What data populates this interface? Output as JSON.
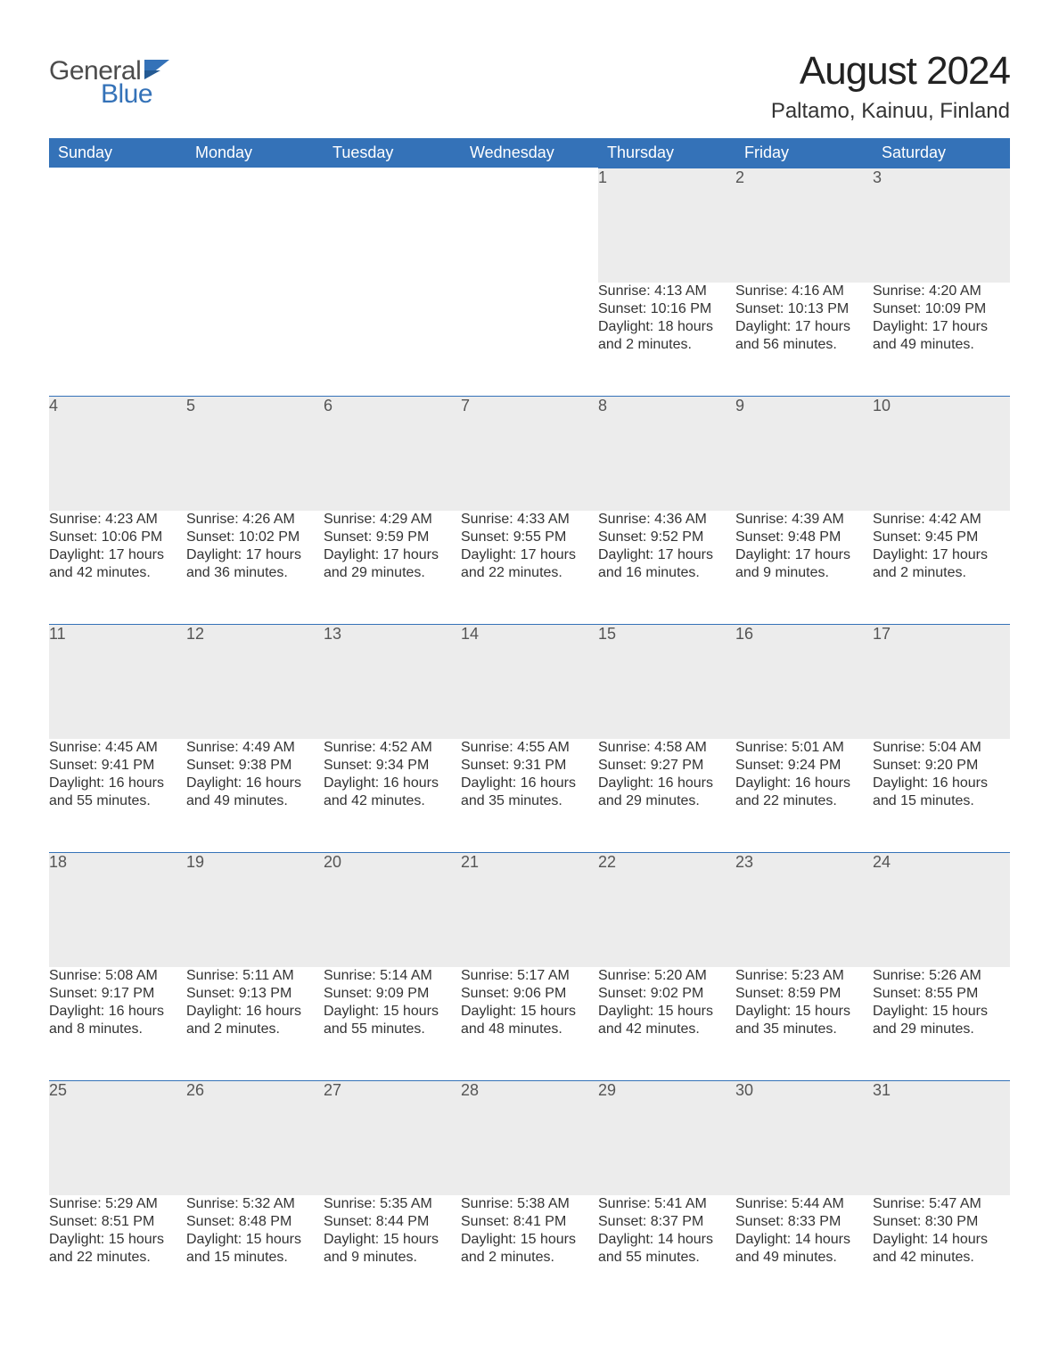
{
  "theme": {
    "header_bg": "#3472b8",
    "header_text": "#ffffff",
    "daynum_bg": "#ececec",
    "daynum_text": "#555555",
    "body_text": "#333333",
    "page_bg": "#ffffff",
    "row_border": "#3472b8",
    "logo_gray": "#4c4c4c",
    "logo_blue": "#3472b8"
  },
  "logo": {
    "word1": "General",
    "word2": "Blue"
  },
  "title": {
    "month": "August 2024",
    "location": "Paltamo, Kainuu, Finland"
  },
  "weekdays": [
    "Sunday",
    "Monday",
    "Tuesday",
    "Wednesday",
    "Thursday",
    "Friday",
    "Saturday"
  ],
  "weeks": [
    [
      null,
      null,
      null,
      null,
      {
        "n": "1",
        "sunrise": "4:13 AM",
        "sunset": "10:16 PM",
        "daylight": "18 hours and 2 minutes."
      },
      {
        "n": "2",
        "sunrise": "4:16 AM",
        "sunset": "10:13 PM",
        "daylight": "17 hours and 56 minutes."
      },
      {
        "n": "3",
        "sunrise": "4:20 AM",
        "sunset": "10:09 PM",
        "daylight": "17 hours and 49 minutes."
      }
    ],
    [
      {
        "n": "4",
        "sunrise": "4:23 AM",
        "sunset": "10:06 PM",
        "daylight": "17 hours and 42 minutes."
      },
      {
        "n": "5",
        "sunrise": "4:26 AM",
        "sunset": "10:02 PM",
        "daylight": "17 hours and 36 minutes."
      },
      {
        "n": "6",
        "sunrise": "4:29 AM",
        "sunset": "9:59 PM",
        "daylight": "17 hours and 29 minutes."
      },
      {
        "n": "7",
        "sunrise": "4:33 AM",
        "sunset": "9:55 PM",
        "daylight": "17 hours and 22 minutes."
      },
      {
        "n": "8",
        "sunrise": "4:36 AM",
        "sunset": "9:52 PM",
        "daylight": "17 hours and 16 minutes."
      },
      {
        "n": "9",
        "sunrise": "4:39 AM",
        "sunset": "9:48 PM",
        "daylight": "17 hours and 9 minutes."
      },
      {
        "n": "10",
        "sunrise": "4:42 AM",
        "sunset": "9:45 PM",
        "daylight": "17 hours and 2 minutes."
      }
    ],
    [
      {
        "n": "11",
        "sunrise": "4:45 AM",
        "sunset": "9:41 PM",
        "daylight": "16 hours and 55 minutes."
      },
      {
        "n": "12",
        "sunrise": "4:49 AM",
        "sunset": "9:38 PM",
        "daylight": "16 hours and 49 minutes."
      },
      {
        "n": "13",
        "sunrise": "4:52 AM",
        "sunset": "9:34 PM",
        "daylight": "16 hours and 42 minutes."
      },
      {
        "n": "14",
        "sunrise": "4:55 AM",
        "sunset": "9:31 PM",
        "daylight": "16 hours and 35 minutes."
      },
      {
        "n": "15",
        "sunrise": "4:58 AM",
        "sunset": "9:27 PM",
        "daylight": "16 hours and 29 minutes."
      },
      {
        "n": "16",
        "sunrise": "5:01 AM",
        "sunset": "9:24 PM",
        "daylight": "16 hours and 22 minutes."
      },
      {
        "n": "17",
        "sunrise": "5:04 AM",
        "sunset": "9:20 PM",
        "daylight": "16 hours and 15 minutes."
      }
    ],
    [
      {
        "n": "18",
        "sunrise": "5:08 AM",
        "sunset": "9:17 PM",
        "daylight": "16 hours and 8 minutes."
      },
      {
        "n": "19",
        "sunrise": "5:11 AM",
        "sunset": "9:13 PM",
        "daylight": "16 hours and 2 minutes."
      },
      {
        "n": "20",
        "sunrise": "5:14 AM",
        "sunset": "9:09 PM",
        "daylight": "15 hours and 55 minutes."
      },
      {
        "n": "21",
        "sunrise": "5:17 AM",
        "sunset": "9:06 PM",
        "daylight": "15 hours and 48 minutes."
      },
      {
        "n": "22",
        "sunrise": "5:20 AM",
        "sunset": "9:02 PM",
        "daylight": "15 hours and 42 minutes."
      },
      {
        "n": "23",
        "sunrise": "5:23 AM",
        "sunset": "8:59 PM",
        "daylight": "15 hours and 35 minutes."
      },
      {
        "n": "24",
        "sunrise": "5:26 AM",
        "sunset": "8:55 PM",
        "daylight": "15 hours and 29 minutes."
      }
    ],
    [
      {
        "n": "25",
        "sunrise": "5:29 AM",
        "sunset": "8:51 PM",
        "daylight": "15 hours and 22 minutes."
      },
      {
        "n": "26",
        "sunrise": "5:32 AM",
        "sunset": "8:48 PM",
        "daylight": "15 hours and 15 minutes."
      },
      {
        "n": "27",
        "sunrise": "5:35 AM",
        "sunset": "8:44 PM",
        "daylight": "15 hours and 9 minutes."
      },
      {
        "n": "28",
        "sunrise": "5:38 AM",
        "sunset": "8:41 PM",
        "daylight": "15 hours and 2 minutes."
      },
      {
        "n": "29",
        "sunrise": "5:41 AM",
        "sunset": "8:37 PM",
        "daylight": "14 hours and 55 minutes."
      },
      {
        "n": "30",
        "sunrise": "5:44 AM",
        "sunset": "8:33 PM",
        "daylight": "14 hours and 49 minutes."
      },
      {
        "n": "31",
        "sunrise": "5:47 AM",
        "sunset": "8:30 PM",
        "daylight": "14 hours and 42 minutes."
      }
    ]
  ],
  "labels": {
    "sunrise": "Sunrise:",
    "sunset": "Sunset:",
    "daylight": "Daylight:"
  }
}
